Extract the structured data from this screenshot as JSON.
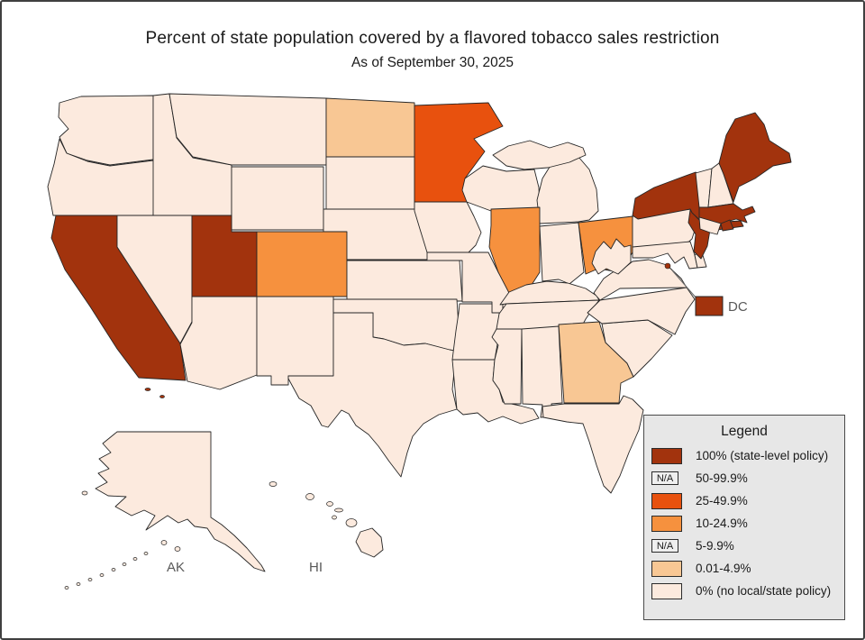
{
  "title": "Percent of state population covered by a flavored tobacco sales restriction",
  "subtitle": "As of September 30, 2025",
  "inset_labels": {
    "alaska": "AK",
    "hawaii": "HI"
  },
  "dc_callout_label": "DC",
  "legend": {
    "title": "Legend",
    "na_label": "N/A",
    "entries": [
      {
        "category_id": "p100",
        "swatch": "color",
        "label": "100% (state-level policy)"
      },
      {
        "category_id": "p50_99",
        "swatch": "na",
        "label": "50-99.9%"
      },
      {
        "category_id": "p25_49",
        "swatch": "color",
        "label": "25-49.9%"
      },
      {
        "category_id": "p10_24",
        "swatch": "color",
        "label": "10-24.9%"
      },
      {
        "category_id": "p5_9",
        "swatch": "na",
        "label": "5-9.9%"
      },
      {
        "category_id": "p001_49",
        "swatch": "color",
        "label": "0.01-4.9%"
      },
      {
        "category_id": "p0",
        "swatch": "color",
        "label": "0% (no local/state policy)"
      }
    ]
  },
  "colors": {
    "p100": "#A2330D",
    "p25_49": "#E8510E",
    "p10_24": "#F6913E",
    "p001_49": "#F8C794",
    "p0": "#FCEADE",
    "na_fill": "#EFEFEF",
    "state_border": "#262626",
    "legend_bg": "#E7E7E7",
    "legend_border": "#4A4A4A",
    "label_gray": "#595959",
    "title_text": "#1A1A1A",
    "page_border": "#3F3F3F"
  },
  "chart_data": {
    "type": "heatmap",
    "subtype": "us_state_choropleth",
    "title": "Percent of state population covered by a flavored tobacco sales restriction",
    "subtitle": "As of September 30, 2025",
    "legend_position": "bottom-right",
    "categories": [
      {
        "id": "p100",
        "label": "100% (state-level policy)",
        "color": "#A2330D",
        "na": false
      },
      {
        "id": "p50_99",
        "label": "50-99.9%",
        "color": null,
        "na": true
      },
      {
        "id": "p25_49",
        "label": "25-49.9%",
        "color": "#E8510E",
        "na": false
      },
      {
        "id": "p10_24",
        "label": "10-24.9%",
        "color": "#F6913E",
        "na": false
      },
      {
        "id": "p5_9",
        "label": "5-9.9%",
        "color": null,
        "na": true
      },
      {
        "id": "p001_49",
        "label": "0.01-4.9%",
        "color": "#F8C794",
        "na": false
      },
      {
        "id": "p0",
        "label": "0% (no local/state policy)",
        "color": "#FCEADE",
        "na": false
      }
    ],
    "state_categories": {
      "AL": "p0",
      "AK": "p0",
      "AZ": "p0",
      "AR": "p0",
      "CA": "p100",
      "CO": "p10_24",
      "CT": "p0",
      "DE": "p0",
      "DC": "p100",
      "FL": "p0",
      "GA": "p001_49",
      "HI": "p0",
      "ID": "p0",
      "IL": "p10_24",
      "IN": "p0",
      "IA": "p0",
      "KS": "p0",
      "KY": "p0",
      "LA": "p0",
      "ME": "p100",
      "MD": "p0",
      "MA": "p100",
      "MI": "p0",
      "MN": "p25_49",
      "MS": "p0",
      "MO": "p0",
      "MT": "p0",
      "NE": "p0",
      "NV": "p0",
      "NH": "p0",
      "NJ": "p100",
      "NM": "p0",
      "NY": "p100",
      "NC": "p0",
      "ND": "p001_49",
      "OH": "p10_24",
      "OK": "p0",
      "OR": "p0",
      "PA": "p0",
      "RI": "p100",
      "SC": "p0",
      "SD": "p0",
      "TN": "p0",
      "TX": "p0",
      "UT": "p100",
      "VT": "p0",
      "VA": "p0",
      "WA": "p0",
      "WV": "p0",
      "WI": "p0",
      "WY": "p0"
    }
  }
}
